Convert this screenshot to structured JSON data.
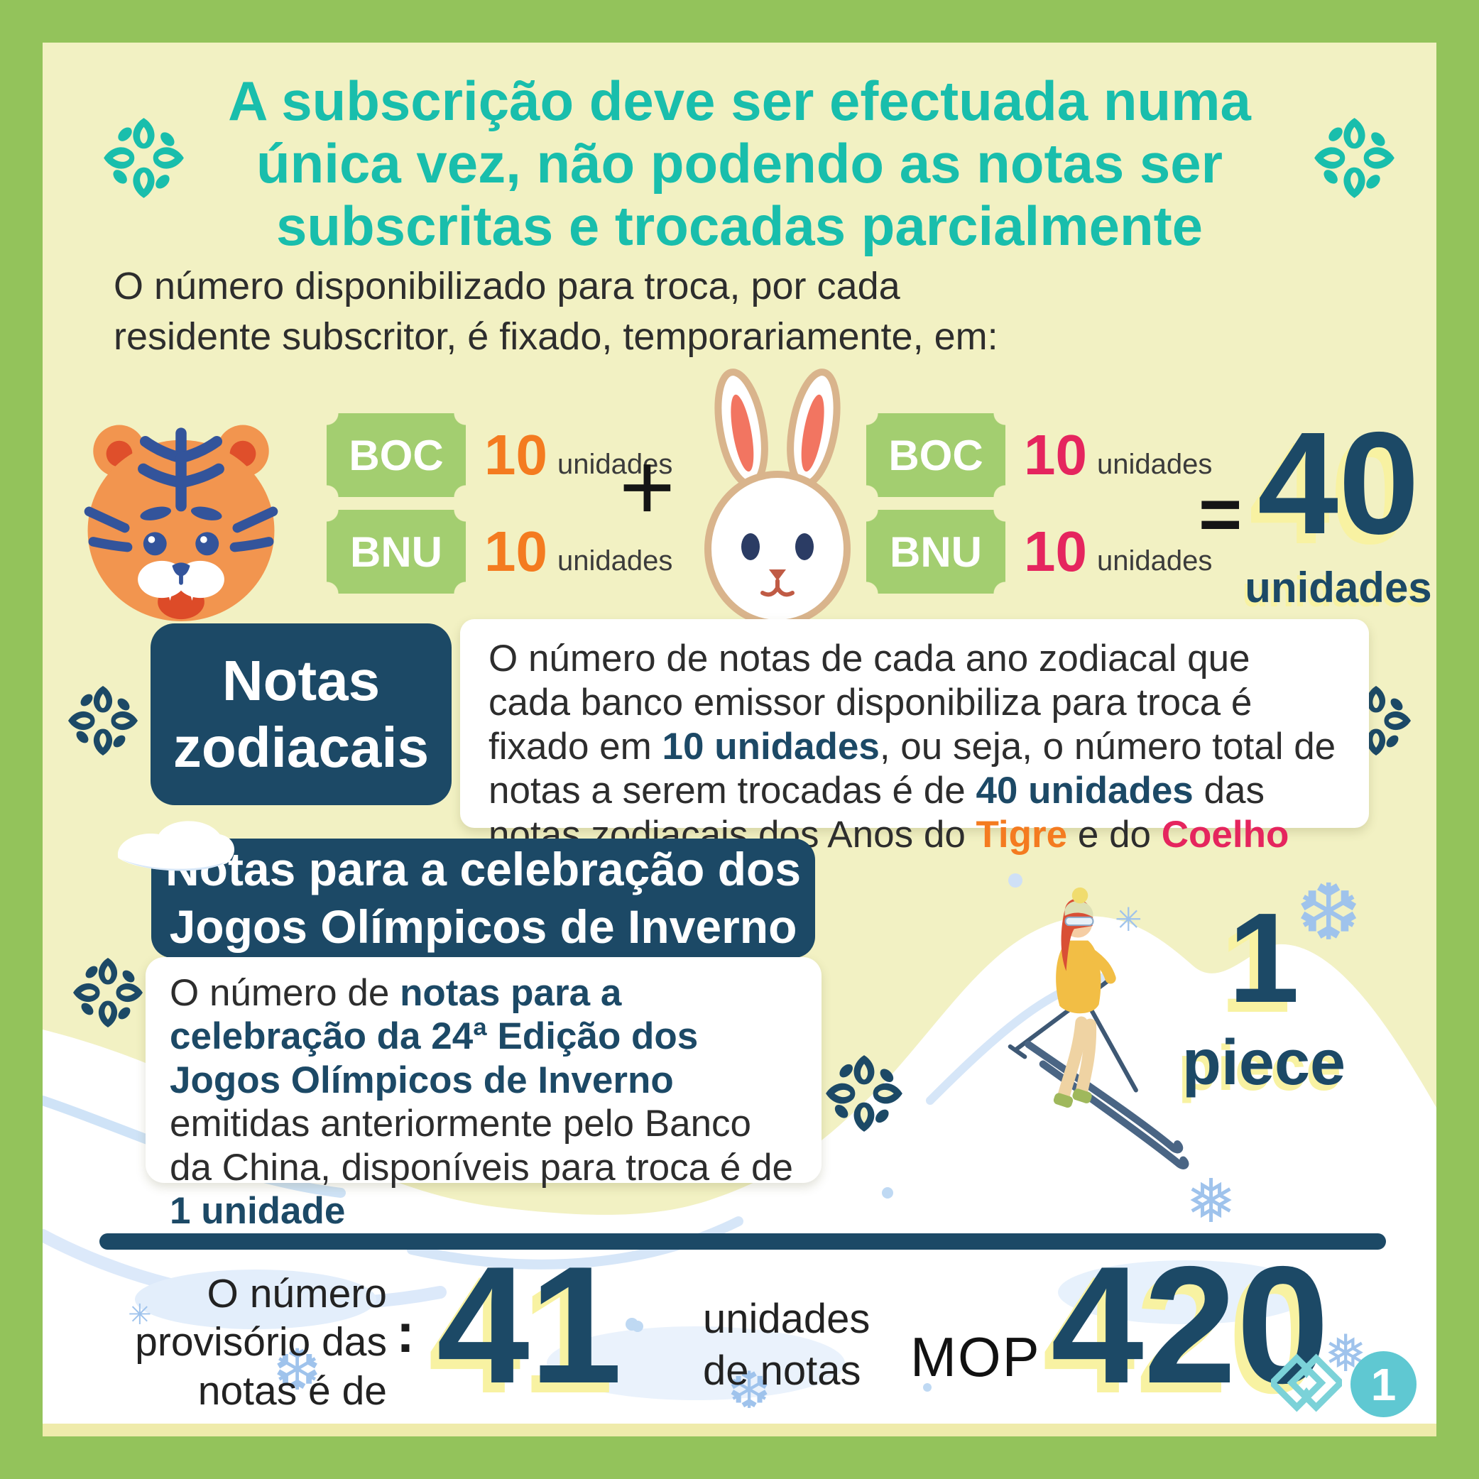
{
  "colors": {
    "frame_green": "#93C35B",
    "background_cream": "#F2F1C3",
    "title_teal": "#19BEAC",
    "navy": "#1C4966",
    "accent_orange": "#F47B20",
    "accent_pink": "#E5255E",
    "badge_green": "#A3CE70",
    "shadow_yellow": "#F8F2A2",
    "page_badge_teal": "#5FC8D2"
  },
  "title": {
    "lines": [
      "A subscrição deve ser efectuada numa",
      "única vez, não podendo as notas ser",
      "subscritas e trocadas parcialmente"
    ]
  },
  "intro": {
    "lines": [
      "O número disponibilizado para troca, por cada",
      "residente subscritor, é fixado, temporariamente, em:"
    ]
  },
  "exchange": {
    "plus": "+",
    "equals": "=",
    "tiger_group": {
      "animal": "tiger",
      "rows": [
        {
          "bank": "BOC",
          "qty": "10",
          "unit": "unidades"
        },
        {
          "bank": "BNU",
          "qty": "10",
          "unit": "unidades"
        }
      ]
    },
    "rabbit_group": {
      "animal": "rabbit",
      "rows": [
        {
          "bank": "BOC",
          "qty": "10",
          "unit": "unidades"
        },
        {
          "bank": "BNU",
          "qty": "10",
          "unit": "unidades"
        }
      ]
    },
    "total": {
      "value": "40",
      "unit": "unidades"
    }
  },
  "zodiac_section": {
    "heading_lines": [
      "Notas",
      "zodiacais"
    ],
    "body_segments": [
      {
        "t": "O número de notas de cada ano zodiacal que cada banco emissor disponibiliza para troca é fixado em "
      },
      {
        "t": "10 unidades",
        "c": "navy"
      },
      {
        "t": ", ou seja, o número total de notas a serem trocadas é de "
      },
      {
        "t": "40 unidades",
        "c": "navy"
      },
      {
        "t": " das notas zodiacais dos Anos do "
      },
      {
        "t": "Tigre",
        "c": "orange"
      },
      {
        "t": " e do "
      },
      {
        "t": "Coelho",
        "c": "pink"
      }
    ]
  },
  "olympics_section": {
    "heading_lines": [
      "Notas para a celebração dos",
      "Jogos Olímpicos de Inverno"
    ],
    "body_segments": [
      {
        "t": "O número de "
      },
      {
        "t": "notas para a celebração da 24ª Edição dos Jogos Olímpicos de Inverno",
        "c": "navy"
      },
      {
        "t": " emitidas anteriormente pelo Banco da China, disponíveis para troca é de "
      },
      {
        "t": "1 unidade",
        "c": "navy"
      }
    ],
    "piece": {
      "value": "1",
      "label": "piece"
    }
  },
  "summary": {
    "label_lines": [
      "O número",
      "provisório das",
      "notas é de"
    ],
    "colon": ":",
    "units": {
      "value": "41",
      "lines": [
        "unidades",
        "de notas"
      ]
    },
    "price": {
      "currency": "MOP",
      "value": "420"
    }
  },
  "footer": {
    "page_number": "1"
  }
}
